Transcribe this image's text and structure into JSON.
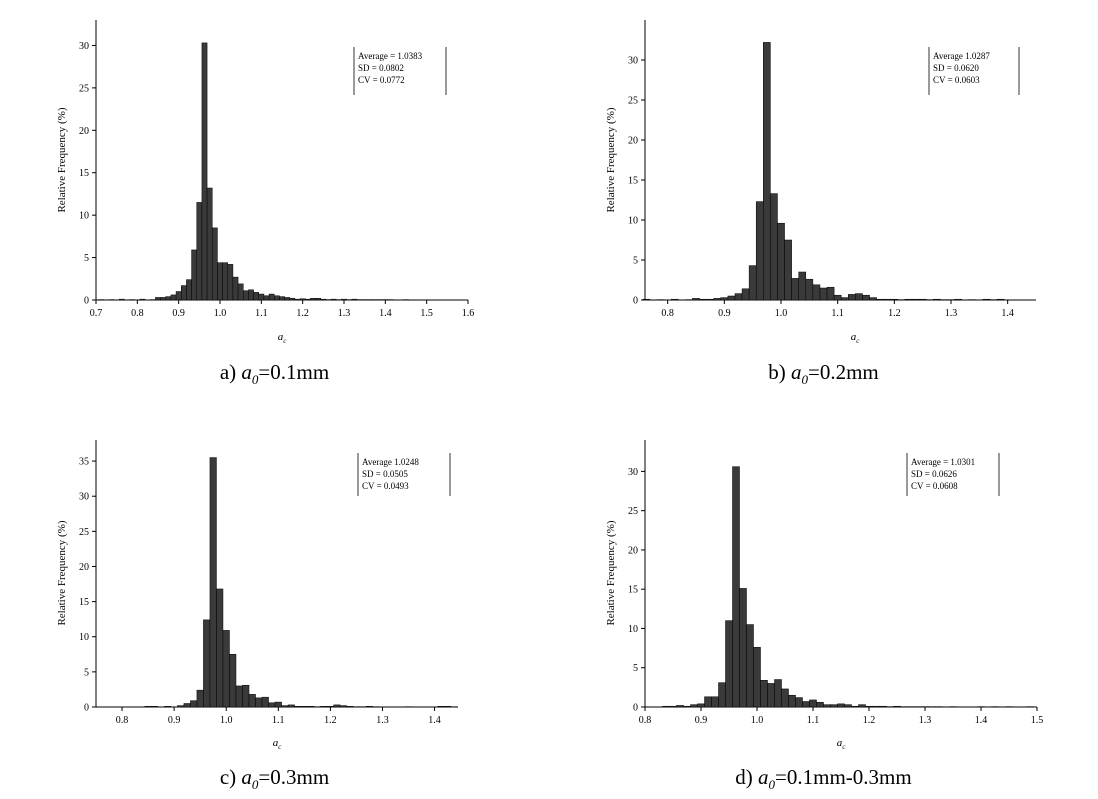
{
  "chart_data": [
    {
      "type": "bar",
      "panel": "a",
      "caption": {
        "prefix": "a) ",
        "var": "a",
        "sub": "0",
        "suffix": "=0.1mm"
      },
      "xlabel": "a",
      "xlabel_sub": "c",
      "ylabel": "Relative Frequency (%)",
      "xlim": [
        0.7,
        1.6
      ],
      "ylim": [
        0,
        33
      ],
      "xticks": [
        "0.7",
        "0.8",
        "0.9",
        "1.0",
        "1.1",
        "1.2",
        "1.3",
        "1.4",
        "1.5",
        "1.6"
      ],
      "yticks": [
        "0",
        "5",
        "10",
        "15",
        "20",
        "25",
        "30"
      ],
      "bin_width": 0.0125,
      "x": [
        0.7125,
        0.725,
        0.7375,
        0.75,
        0.7625,
        0.775,
        0.7875,
        0.8,
        0.8125,
        0.825,
        0.8375,
        0.85,
        0.8625,
        0.875,
        0.8875,
        0.9,
        0.9125,
        0.925,
        0.9375,
        0.95,
        0.9625,
        0.975,
        0.9875,
        1.0,
        1.0125,
        1.025,
        1.0375,
        1.05,
        1.0625,
        1.075,
        1.0875,
        1.1,
        1.1125,
        1.125,
        1.1375,
        1.15,
        1.1625,
        1.175,
        1.1875,
        1.2,
        1.2125,
        1.225,
        1.2375,
        1.25,
        1.2625,
        1.275,
        1.2875,
        1.3,
        1.3125,
        1.325,
        1.3375,
        1.35,
        1.3625,
        1.375,
        1.3875,
        1.4,
        1.4125,
        1.425,
        1.4375,
        1.45,
        1.4625,
        1.475,
        1.4875,
        1.5,
        1.5125,
        1.525,
        1.5375,
        1.55,
        1.5625,
        1.575,
        1.5875
      ],
      "values": [
        0.05,
        0,
        0.05,
        0,
        0.1,
        0,
        0.05,
        0,
        0.1,
        0,
        0.05,
        0.3,
        0.3,
        0.4,
        0.6,
        1.0,
        1.7,
        2.4,
        5.9,
        11.5,
        30.3,
        13.2,
        8.5,
        4.4,
        4.4,
        4.2,
        2.7,
        1.9,
        1.1,
        1.2,
        0.9,
        0.7,
        0.5,
        0.7,
        0.5,
        0.4,
        0.3,
        0.2,
        0.1,
        0.15,
        0.1,
        0.2,
        0.2,
        0.1,
        0.05,
        0.1,
        0.05,
        0.1,
        0.05,
        0.1,
        0.05,
        0.05,
        0.05,
        0.05,
        0.05,
        0.05,
        0.05,
        0,
        0,
        0.05,
        0,
        0,
        0,
        0,
        0,
        0,
        0,
        0,
        0,
        0,
        0
      ],
      "stats": {
        "average": "Average = 1.0383",
        "sd": "SD = 0.0802",
        "cv": "CV =  0.0772"
      },
      "colors": {
        "bar": "#3a3a3a",
        "edge": "#000000"
      }
    },
    {
      "type": "bar",
      "panel": "b",
      "caption": {
        "prefix": "b) ",
        "var": "a",
        "sub": "0",
        "suffix": "=0.2mm"
      },
      "xlabel": "a",
      "xlabel_sub": "c",
      "ylabel": "Relative Frequency (%)",
      "xlim": [
        0.76,
        1.45
      ],
      "ylim": [
        0,
        35
      ],
      "xticks": [
        "0.8",
        "0.9",
        "1.0",
        "1.1",
        "1.2",
        "1.3",
        "1.4"
      ],
      "yticks": [
        "0",
        "5",
        "10",
        "15",
        "20",
        "25",
        "30"
      ],
      "bin_width": 0.0125,
      "x": [
        0.7625,
        0.775,
        0.7875,
        0.8,
        0.8125,
        0.825,
        0.8375,
        0.85,
        0.8625,
        0.875,
        0.8875,
        0.9,
        0.9125,
        0.925,
        0.9375,
        0.95,
        0.9625,
        0.975,
        0.9875,
        1.0,
        1.0125,
        1.025,
        1.0375,
        1.05,
        1.0625,
        1.075,
        1.0875,
        1.1,
        1.1125,
        1.125,
        1.1375,
        1.15,
        1.1625,
        1.175,
        1.1875,
        1.2,
        1.2125,
        1.225,
        1.2375,
        1.25,
        1.2625,
        1.275,
        1.2875,
        1.3,
        1.3125,
        1.325,
        1.3375,
        1.35,
        1.3625,
        1.375,
        1.3875,
        1.4,
        1.4125,
        1.425,
        1.4375
      ],
      "values": [
        0.1,
        0,
        0.05,
        0,
        0.1,
        0,
        0.05,
        0.2,
        0.1,
        0.1,
        0.2,
        0.3,
        0.5,
        0.8,
        1.4,
        4.3,
        12.3,
        32.2,
        13.3,
        9.6,
        7.5,
        2.7,
        3.5,
        2.6,
        1.9,
        1.5,
        1.6,
        0.6,
        0.3,
        0.7,
        0.8,
        0.6,
        0.3,
        0.1,
        0.1,
        0.1,
        0.05,
        0.1,
        0.1,
        0.1,
        0.05,
        0.1,
        0.05,
        0.05,
        0.1,
        0,
        0.05,
        0,
        0.1,
        0.05,
        0.1,
        0,
        0,
        0,
        0
      ],
      "stats": {
        "average": "Average     1.0287",
        "sd": "SD = 0.0620",
        "cv": "CV = 0.0603"
      },
      "colors": {
        "bar": "#3a3a3a",
        "edge": "#000000"
      }
    },
    {
      "type": "bar",
      "panel": "c",
      "caption": {
        "prefix": "c) ",
        "var": "a",
        "sub": "0",
        "suffix": "=0.3mm"
      },
      "xlabel": "a",
      "xlabel_sub": "c",
      "ylabel": "Relative Frequency (%)",
      "xlim": [
        0.75,
        1.445
      ],
      "ylim": [
        0,
        38
      ],
      "xticks": [
        "0.8",
        "0.9",
        "1.0",
        "1.1",
        "1.2",
        "1.3",
        "1.4"
      ],
      "yticks": [
        "0",
        "5",
        "10",
        "15",
        "20",
        "25",
        "30",
        "35"
      ],
      "bin_width": 0.0125,
      "x": [
        0.7625,
        0.775,
        0.7875,
        0.8,
        0.8125,
        0.825,
        0.8375,
        0.85,
        0.8625,
        0.875,
        0.8875,
        0.9,
        0.9125,
        0.925,
        0.9375,
        0.95,
        0.9625,
        0.975,
        0.9875,
        1.0,
        1.0125,
        1.025,
        1.0375,
        1.05,
        1.0625,
        1.075,
        1.0875,
        1.1,
        1.1125,
        1.125,
        1.1375,
        1.15,
        1.1625,
        1.175,
        1.1875,
        1.2,
        1.2125,
        1.225,
        1.2375,
        1.25,
        1.2625,
        1.275,
        1.2875,
        1.3,
        1.3125,
        1.325,
        1.3375,
        1.35,
        1.3625,
        1.375,
        1.3875,
        1.4,
        1.4125,
        1.425,
        1.4375
      ],
      "values": [
        0,
        0,
        0,
        0,
        0,
        0,
        0,
        0.1,
        0.1,
        0,
        0.1,
        0,
        0.2,
        0.5,
        0.9,
        2.4,
        12.4,
        35.5,
        16.8,
        10.9,
        7.5,
        3.0,
        3.1,
        1.8,
        1.3,
        1.4,
        0.6,
        0.7,
        0.2,
        0.3,
        0.1,
        0.1,
        0.1,
        0.05,
        0.1,
        0.1,
        0.3,
        0.2,
        0.1,
        0.05,
        0.05,
        0.1,
        0.05,
        0,
        0,
        0,
        0,
        0.05,
        0,
        0,
        0,
        0,
        0.1,
        0.1,
        0.05
      ],
      "stats": {
        "average": "Average     1.0248",
        "sd": "SD = 0.0505",
        "cv": "CV = 0.0493"
      },
      "colors": {
        "bar": "#3a3a3a",
        "edge": "#000000"
      }
    },
    {
      "type": "bar",
      "panel": "d",
      "caption": {
        "prefix": "d) ",
        "var": "a",
        "sub": "0",
        "suffix": "=0.1mm-0.3mm"
      },
      "xlabel": "a",
      "xlabel_sub": "c",
      "ylabel": "Relative Frequency (%)",
      "xlim": [
        0.8,
        1.5
      ],
      "ylim": [
        0,
        34
      ],
      "xticks": [
        "0.8",
        "0.9",
        "1.0",
        "1.1",
        "1.2",
        "1.3",
        "1.4",
        "1.5"
      ],
      "yticks": [
        "0",
        "5",
        "10",
        "15",
        "20",
        "25",
        "30"
      ],
      "bin_width": 0.0125,
      "x": [
        0.8375,
        0.85,
        0.8625,
        0.875,
        0.8875,
        0.9,
        0.9125,
        0.925,
        0.9375,
        0.95,
        0.9625,
        0.975,
        0.9875,
        1.0,
        1.0125,
        1.025,
        1.0375,
        1.05,
        1.0625,
        1.075,
        1.0875,
        1.1,
        1.1125,
        1.125,
        1.1375,
        1.15,
        1.1625,
        1.175,
        1.1875,
        1.2,
        1.2125,
        1.225,
        1.2375,
        1.25,
        1.2625,
        1.275,
        1.2875,
        1.3,
        1.3125,
        1.325,
        1.3375,
        1.35,
        1.3625,
        1.375,
        1.3875,
        1.4,
        1.4125,
        1.425,
        1.4375,
        1.45,
        1.4625,
        1.475,
        1.4875
      ],
      "values": [
        0.1,
        0.1,
        0.2,
        0.1,
        0.3,
        0.4,
        1.3,
        1.3,
        3.1,
        11.0,
        30.6,
        15.1,
        10.5,
        7.6,
        3.4,
        3.0,
        3.5,
        2.3,
        1.5,
        1.2,
        0.7,
        0.9,
        0.6,
        0.3,
        0.3,
        0.4,
        0.3,
        0.1,
        0.3,
        0.1,
        0.1,
        0.1,
        0.05,
        0.1,
        0.05,
        0.05,
        0.05,
        0.05,
        0.05,
        0.05,
        0,
        0.05,
        0,
        0,
        0,
        0.05,
        0,
        0.05,
        0,
        0.05,
        0,
        0,
        0.05
      ],
      "stats": {
        "average": "Average = 1.0301",
        "sd": "SD = 0.0626",
        "cv": "CV = 0.0608"
      },
      "colors": {
        "bar": "#3a3a3a",
        "edge": "#000000"
      }
    }
  ]
}
